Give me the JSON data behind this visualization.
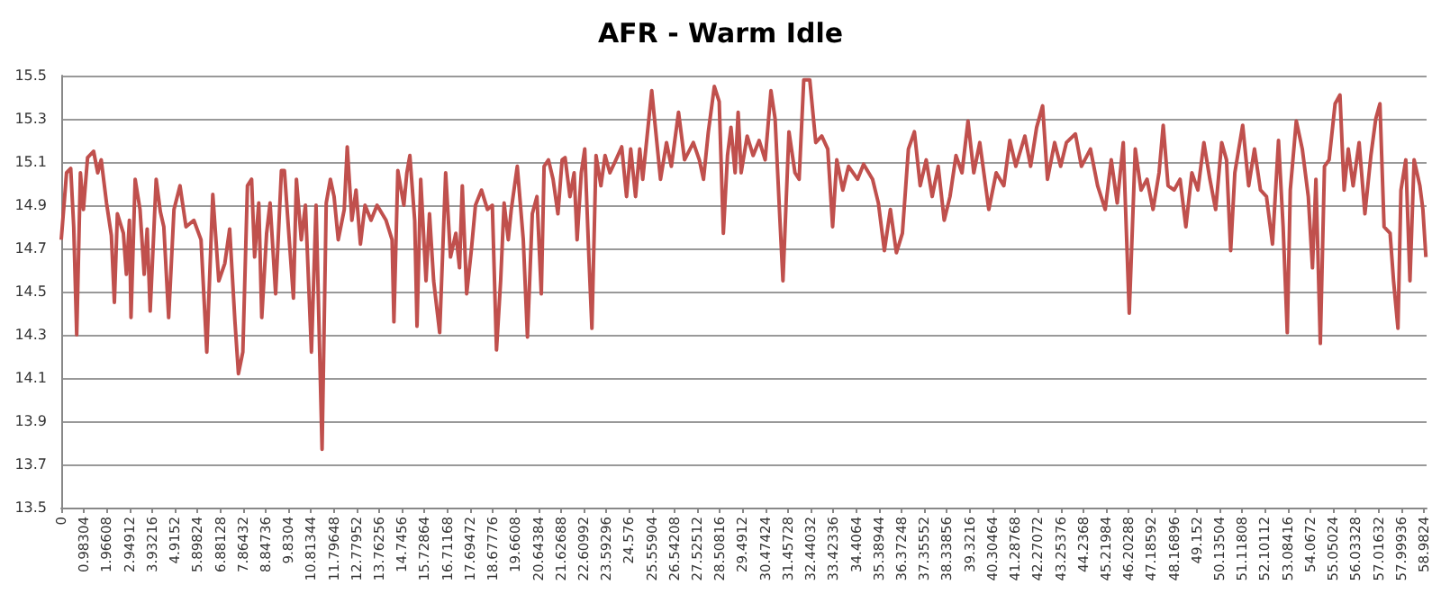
{
  "chart_data": {
    "type": "line",
    "title": "AFR - Warm Idle",
    "xlim": [
      0,
      59.1
    ],
    "xticks": [
      0,
      0.98304,
      1.96608,
      2.94912,
      3.93216,
      4.9152,
      5.89824,
      6.88128,
      7.86432,
      8.84736,
      9.8304,
      10.81344,
      11.79648,
      12.77952,
      13.76256,
      14.7456,
      15.72864,
      16.71168,
      17.69472,
      18.67776,
      19.6608,
      20.64384,
      21.62688,
      22.60992,
      23.59296,
      24.576,
      25.55904,
      26.54208,
      27.52512,
      28.50816,
      29.4912,
      30.47424,
      31.45728,
      32.44032,
      33.42336,
      34.4064,
      35.38944,
      36.37248,
      37.35552,
      38.33856,
      39.3216,
      40.30464,
      41.28768,
      42.27072,
      43.25376,
      44.2368,
      45.21984,
      46.20288,
      47.18592,
      48.16896,
      49.152,
      50.13504,
      51.11808,
      52.10112,
      53.08416,
      54.0672,
      55.05024,
      56.03328,
      57.01632,
      57.99936,
      58.9824
    ],
    "ylim": [
      13.5,
      15.5
    ],
    "yticks": [
      13.5,
      13.7,
      13.9,
      14.1,
      14.3,
      14.5,
      14.7,
      14.9,
      15.1,
      15.3,
      15.5
    ],
    "grid": "y",
    "series": [
      {
        "color": "#c0504d",
        "x": [
          0,
          0.23,
          0.41,
          0.54,
          0.67,
          0.83,
          0.96,
          1.14,
          1.4,
          1.58,
          1.73,
          1.96,
          2.17,
          2.3,
          2.43,
          2.69,
          2.82,
          2.95,
          3.02,
          3.2,
          3.41,
          3.59,
          3.72,
          3.85,
          4.11,
          4.29,
          4.44,
          4.65,
          4.88,
          5.14,
          5.4,
          5.74,
          6.05,
          6.3,
          6.56,
          6.82,
          7.08,
          7.29,
          7.52,
          7.67,
          7.86,
          8.06,
          8.24,
          8.37,
          8.55,
          8.68,
          8.89,
          9.04,
          9.28,
          9.53,
          9.66,
          9.87,
          10.05,
          10.18,
          10.39,
          10.57,
          10.83,
          11.03,
          11.29,
          11.47,
          11.65,
          11.81,
          11.99,
          12.25,
          12.38,
          12.58,
          12.76,
          12.95,
          13.15,
          13.41,
          13.67,
          14.06,
          14.32,
          14.4,
          14.57,
          14.83,
          14.96,
          15.09,
          15.3,
          15.4,
          15.56,
          15.79,
          15.94,
          16.12,
          16.38,
          16.64,
          16.85,
          17.08,
          17.24,
          17.36,
          17.55,
          17.75,
          17.93,
          18.19,
          18.45,
          18.66,
          18.84,
          19.02,
          19.17,
          19.35,
          19.48,
          19.74,
          20.0,
          20.18,
          20.39,
          20.59,
          20.78,
          20.9,
          21.09,
          21.29,
          21.5,
          21.68,
          21.81,
          22.02,
          22.2,
          22.33,
          22.51,
          22.66,
          22.84,
          22.97,
          23.15,
          23.36,
          23.54,
          23.75,
          24.01,
          24.26,
          24.47,
          24.65,
          24.86,
          25.04,
          25.17,
          25.37,
          25.56,
          25.68,
          25.94,
          26.2,
          26.41,
          26.72,
          26.98,
          27.36,
          27.62,
          27.8,
          28.01,
          28.27,
          28.48,
          28.66,
          28.84,
          28.99,
          29.17,
          29.3,
          29.43,
          29.69,
          29.95,
          30.21,
          30.47,
          30.72,
          30.9,
          31.11,
          31.24,
          31.5,
          31.76,
          31.94,
          32.14,
          32.4,
          32.66,
          32.92,
          33.18,
          33.39,
          33.57,
          33.83,
          34.08,
          34.47,
          34.73,
          35.12,
          35.37,
          35.63,
          35.89,
          36.15,
          36.41,
          36.67,
          36.93,
          37.18,
          37.44,
          37.7,
          37.96,
          38.22,
          38.47,
          38.73,
          38.99,
          39.25,
          39.5,
          39.76,
          40.15,
          40.47,
          40.8,
          41.06,
          41.32,
          41.71,
          41.96,
          42.22,
          42.48,
          42.69,
          43.0,
          43.26,
          43.51,
          43.9,
          44.16,
          44.55,
          44.86,
          45.19,
          45.45,
          45.71,
          45.97,
          46.23,
          46.49,
          46.74,
          47.0,
          47.26,
          47.52,
          47.7,
          47.91,
          48.17,
          48.43,
          48.68,
          48.94,
          49.2,
          49.46,
          49.72,
          49.97,
          50.23,
          50.44,
          50.62,
          50.8,
          51.14,
          51.4,
          51.65,
          51.91,
          52.17,
          52.43,
          52.69,
          52.89,
          53.07,
          53.2,
          53.46,
          53.72,
          53.98,
          54.16,
          54.31,
          54.5,
          54.68,
          54.88,
          55.14,
          55.35,
          55.53,
          55.71,
          55.92,
          56.18,
          56.43,
          56.69,
          56.9,
          57.08,
          57.26,
          57.52,
          57.67,
          57.86,
          57.99,
          58.2,
          58.38,
          58.56,
          58.81,
          58.94,
          59.07
        ],
        "values": [
          14.74,
          15.05,
          15.07,
          14.8,
          14.3,
          15.05,
          14.88,
          15.12,
          15.15,
          15.05,
          15.11,
          14.91,
          14.76,
          14.45,
          14.86,
          14.77,
          14.58,
          14.83,
          14.38,
          15.02,
          14.88,
          14.58,
          14.79,
          14.41,
          15.02,
          14.87,
          14.8,
          14.38,
          14.88,
          14.99,
          14.8,
          14.83,
          14.74,
          14.22,
          14.95,
          14.55,
          14.63,
          14.79,
          14.36,
          14.12,
          14.22,
          14.99,
          15.02,
          14.66,
          14.91,
          14.38,
          14.77,
          14.91,
          14.49,
          15.06,
          15.06,
          14.74,
          14.47,
          15.02,
          14.74,
          14.9,
          14.22,
          14.9,
          13.77,
          14.91,
          15.02,
          14.94,
          14.74,
          14.88,
          15.17,
          14.83,
          14.97,
          14.72,
          14.9,
          14.83,
          14.9,
          14.83,
          14.74,
          14.36,
          15.06,
          14.9,
          15.05,
          15.13,
          14.83,
          14.34,
          15.02,
          14.55,
          14.86,
          14.55,
          14.31,
          15.05,
          14.66,
          14.77,
          14.61,
          14.99,
          14.49,
          14.69,
          14.9,
          14.97,
          14.88,
          14.9,
          14.23,
          14.55,
          14.91,
          14.74,
          14.88,
          15.08,
          14.74,
          14.29,
          14.86,
          14.94,
          14.49,
          15.08,
          15.11,
          15.02,
          14.86,
          15.11,
          15.12,
          14.94,
          15.05,
          14.74,
          15.05,
          15.16,
          14.66,
          14.33,
          15.13,
          14.99,
          15.13,
          15.05,
          15.11,
          15.17,
          14.94,
          15.16,
          14.94,
          15.16,
          15.02,
          15.23,
          15.43,
          15.3,
          15.02,
          15.19,
          15.08,
          15.33,
          15.11,
          15.19,
          15.11,
          15.02,
          15.24,
          15.45,
          15.38,
          14.77,
          15.13,
          15.26,
          15.05,
          15.33,
          15.05,
          15.22,
          15.13,
          15.2,
          15.11,
          15.43,
          15.3,
          14.83,
          14.55,
          15.24,
          15.05,
          15.02,
          15.48,
          15.48,
          15.19,
          15.22,
          15.16,
          14.8,
          15.11,
          14.97,
          15.08,
          15.02,
          15.09,
          15.02,
          14.91,
          14.69,
          14.88,
          14.68,
          14.77,
          15.16,
          15.24,
          14.99,
          15.11,
          14.94,
          15.08,
          14.83,
          14.94,
          15.13,
          15.05,
          15.29,
          15.05,
          15.19,
          14.88,
          15.05,
          14.99,
          15.2,
          15.08,
          15.22,
          15.08,
          15.26,
          15.36,
          15.02,
          15.19,
          15.08,
          15.19,
          15.23,
          15.08,
          15.16,
          14.99,
          14.88,
          15.11,
          14.91,
          15.19,
          14.4,
          15.16,
          14.97,
          15.02,
          14.88,
          15.05,
          15.27,
          14.99,
          14.97,
          15.02,
          14.8,
          15.05,
          14.97,
          15.19,
          15.02,
          14.88,
          15.19,
          15.11,
          14.69,
          15.05,
          15.27,
          14.99,
          15.16,
          14.97,
          14.94,
          14.72,
          15.2,
          14.8,
          14.31,
          14.97,
          15.29,
          15.16,
          14.94,
          14.61,
          15.02,
          14.26,
          15.08,
          15.11,
          15.37,
          15.41,
          14.97,
          15.16,
          14.99,
          15.19,
          14.86,
          15.13,
          15.3,
          15.37,
          14.8,
          14.77,
          14.55,
          14.33,
          14.97,
          15.11,
          14.55,
          15.11,
          14.99,
          14.88,
          14.66
        ]
      }
    ]
  }
}
